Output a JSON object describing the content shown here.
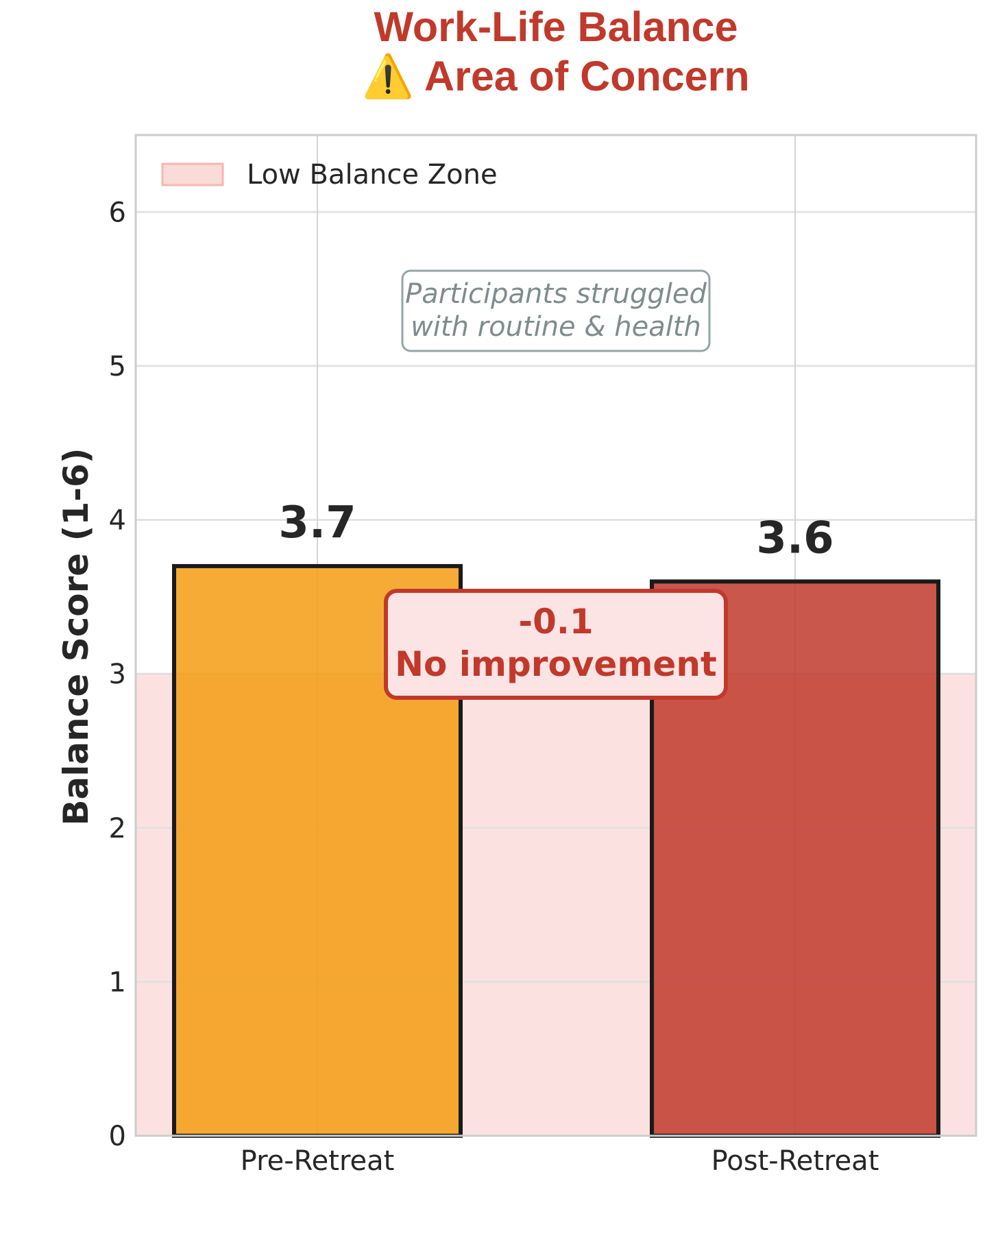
{
  "chart_data": {
    "type": "bar",
    "title_line1": "Work-Life Balance",
    "title_line2": "⚠️ Area of Concern",
    "ylabel": "Balance Score (1-6)",
    "xlabel": "",
    "ylim": [
      0,
      6.5
    ],
    "yticks": [
      "0",
      "1",
      "2",
      "3",
      "4",
      "5",
      "6"
    ],
    "grid": true,
    "categories": [
      "Pre-Retreat",
      "Post-Retreat"
    ],
    "values": [
      3.7,
      3.6
    ],
    "value_labels": [
      "3.7",
      "3.6"
    ],
    "bar_colors": [
      "#f39c12",
      "#c0392b"
    ],
    "zone": {
      "label": "Low Balance Zone",
      "from": 0,
      "to": 3,
      "color": "#fadbd8"
    },
    "legend_position": "top-left",
    "annotation_note": {
      "line1": "Participants struggled",
      "line2": "with routine & health"
    },
    "delta_box": {
      "line1": "-0.1",
      "line2": "No improvement"
    }
  },
  "colors": {
    "title": "#c0392b",
    "grid": "#e3e3e3",
    "frame": "#cccccc",
    "bar_edge": "#1a1a1a",
    "note": "#7f8c8d",
    "delta": "#c0392b",
    "delta_fill": "#fde4e4"
  }
}
